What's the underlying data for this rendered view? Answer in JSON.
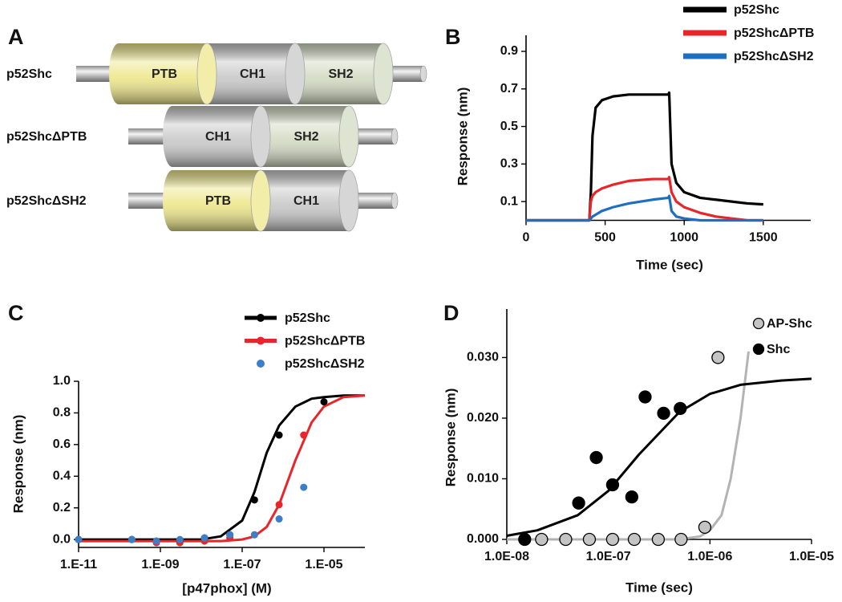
{
  "diagram": {
    "label": "A",
    "constructs": [
      {
        "name": "p52Shc",
        "domains": [
          {
            "label": "PTB",
            "color": "#eee78c"
          },
          {
            "label": "CH1",
            "color": "#c9c9c9"
          },
          {
            "label": "SH2",
            "color": "#d3dbc3"
          }
        ]
      },
      {
        "name": "p52ShcΔPTB",
        "domains": [
          {
            "label": "CH1",
            "color": "#c9c9c9"
          },
          {
            "label": "SH2",
            "color": "#d3dbc3"
          }
        ]
      },
      {
        "name": "p52ShcΔSH2",
        "domains": [
          {
            "label": "PTB",
            "color": "#eee78c"
          },
          {
            "label": "CH1",
            "color": "#c9c9c9"
          }
        ]
      }
    ]
  },
  "chart_data": [
    {
      "type": "line",
      "label": "B",
      "x_label": "Time (sec)",
      "y_label": "Response (nm)",
      "x": [
        0,
        400,
        410,
        420,
        440,
        480,
        550,
        650,
        800,
        900,
        905,
        920,
        950,
        1000,
        1100,
        1200,
        1300,
        1400,
        1500
      ],
      "series": [
        {
          "name": "p52Shc",
          "color": "#000000",
          "values": [
            0,
            0,
            0.15,
            0.45,
            0.6,
            0.64,
            0.66,
            0.67,
            0.67,
            0.67,
            0.68,
            0.3,
            0.2,
            0.15,
            0.12,
            0.11,
            0.1,
            0.09,
            0.085
          ]
        },
        {
          "name": "p52ShcΔPTB",
          "color": "#e8262a",
          "values": [
            0,
            0,
            0.1,
            0.13,
            0.15,
            0.17,
            0.19,
            0.21,
            0.22,
            0.22,
            0.23,
            0.15,
            0.1,
            0.07,
            0.04,
            0.02,
            0.01,
            0,
            0
          ]
        },
        {
          "name": "p52ShcΔSH2",
          "color": "#1f6fbf",
          "values": [
            0,
            0,
            0.01,
            0.02,
            0.03,
            0.05,
            0.07,
            0.09,
            0.11,
            0.12,
            0.13,
            0.05,
            0.02,
            0.01,
            0,
            0,
            0,
            0,
            0
          ]
        }
      ],
      "xlim": [
        0,
        1800
      ],
      "xticks": [
        0,
        500,
        1000,
        1500
      ],
      "ylim": [
        0,
        0.9
      ],
      "yticks": [
        0.1,
        0.3,
        0.5,
        0.7,
        0.9
      ],
      "legend": "top-right"
    },
    {
      "type": "scatter",
      "label": "C",
      "x_label": "[p47phox] (M)",
      "y_label": "Response (nm)",
      "xscale": "log",
      "series": [
        {
          "name": "p52Shc",
          "color": "#000000",
          "x": [
            1e-11,
            2e-10,
            8e-10,
            3e-09,
            1.2e-08,
            5e-08,
            2e-07,
            8e-07,
            1e-05
          ],
          "values": [
            0,
            0,
            -0.01,
            -0.01,
            0.01,
            0.03,
            0.25,
            0.66,
            0.87
          ],
          "fit": {
            "x": [
              1e-11,
              1e-09,
              1e-08,
              3e-08,
              1e-07,
              2e-07,
              4e-07,
              8e-07,
              2e-06,
              5e-06,
              1e-05,
              3e-05,
              0.0001
            ],
            "values": [
              0,
              0,
              0,
              0.02,
              0.12,
              0.3,
              0.55,
              0.72,
              0.84,
              0.89,
              0.9,
              0.91,
              0.91
            ]
          }
        },
        {
          "name": "p52ShcΔPTB",
          "color": "#e8262a",
          "x": [
            1e-11,
            2e-10,
            8e-10,
            3e-09,
            1.2e-08,
            5e-08,
            2e-07,
            8e-07,
            3.2e-06
          ],
          "values": [
            0,
            0,
            -0.02,
            -0.02,
            -0.01,
            0.01,
            0.03,
            0.22,
            0.66
          ],
          "fit": {
            "x": [
              1e-11,
              1e-09,
              1e-08,
              3e-08,
              1e-07,
              2e-07,
              4e-07,
              8e-07,
              2e-06,
              5e-06,
              1e-05,
              3e-05,
              0.0001
            ],
            "values": [
              -0.01,
              -0.01,
              -0.01,
              -0.01,
              0,
              0.02,
              0.08,
              0.22,
              0.5,
              0.74,
              0.84,
              0.9,
              0.91
            ]
          }
        },
        {
          "name": "p52ShcΔSH2",
          "color": "#3d7fc7",
          "x": [
            1e-11,
            2e-10,
            8e-10,
            3e-09,
            1.2e-08,
            5e-08,
            2e-07,
            8e-07,
            3.2e-06
          ],
          "values": [
            0,
            0,
            -0.01,
            0,
            0.01,
            0.03,
            0.03,
            0.13,
            0.33
          ]
        }
      ],
      "xlim": [
        1e-11,
        0.0001
      ],
      "xticks": [
        {
          "value": 1e-11,
          "label": "1.E-11"
        },
        {
          "value": 1e-09,
          "label": "1.E-09"
        },
        {
          "value": 1e-07,
          "label": "1.E-07"
        },
        {
          "value": 1e-05,
          "label": "1.E-05"
        }
      ],
      "ylim": [
        -0.05,
        1
      ],
      "yticks": [
        {
          "value": 0,
          "label": "0.0"
        },
        0.2,
        0.4,
        0.6,
        0.8,
        {
          "value": 1,
          "label": "1.0"
        }
      ],
      "legend": "top-right"
    },
    {
      "type": "scatter",
      "label": "D",
      "x_label": "Time (sec)",
      "y_label": "Response (nm)",
      "xscale": "log",
      "series": [
        {
          "name": "AP-Shc",
          "color": "#c4c4c4",
          "edgecolor": "#000000",
          "line_color": "#b3b3b3",
          "x": [
            2.2e-08,
            3.8e-08,
            6.5e-08,
            1.1e-07,
            1.8e-07,
            3.1e-07,
            5.2e-07,
            8.9e-07,
            1.2e-06
          ],
          "values": [
            0,
            0,
            0,
            0,
            0,
            0,
            0,
            0.002,
            0.03
          ],
          "fit": {
            "x": [
              1e-08,
              5e-07,
              8e-07,
              1e-06,
              1.3e-06,
              1.6e-06,
              2e-06,
              2.4e-06
            ],
            "values": [
              0,
              0,
              0.0005,
              0.0015,
              0.004,
              0.01,
              0.02,
              0.031
            ]
          }
        },
        {
          "name": "Shc",
          "color": "#000000",
          "edgecolor": "#000000",
          "line_color": "#000000",
          "x": [
            1.5e-08,
            5.1e-08,
            7.6e-08,
            1.1e-07,
            1.7e-07,
            2.3e-07,
            3.5e-07,
            5.1e-07
          ],
          "values": [
            0,
            0.006,
            0.0135,
            0.009,
            0.007,
            0.0235,
            0.0208,
            0.0216
          ],
          "fit": {
            "x": [
              1e-08,
              2e-08,
              5e-08,
              1e-07,
              2e-07,
              5e-07,
              1e-06,
              2e-06,
              5e-06,
              1e-05
            ],
            "values": [
              0.0006,
              0.0015,
              0.004,
              0.008,
              0.014,
              0.021,
              0.024,
              0.0255,
              0.0262,
              0.0265
            ]
          }
        }
      ],
      "xlim": [
        1e-08,
        1e-05
      ],
      "xticks": [
        {
          "value": 1e-08,
          "label": "1.0E-08"
        },
        {
          "value": 1e-07,
          "label": "1.0E-07"
        },
        {
          "value": 1e-06,
          "label": "1.0E-06"
        },
        {
          "value": 1e-05,
          "label": "1.0E-05"
        }
      ],
      "ylim": [
        0,
        0.038
      ],
      "yticks": [
        {
          "value": 0,
          "label": "0.000"
        },
        {
          "value": 0.01,
          "label": "0.010"
        },
        {
          "value": 0.02,
          "label": "0.020"
        },
        {
          "value": 0.03,
          "label": "0.030"
        }
      ],
      "legend": "top-right"
    }
  ]
}
